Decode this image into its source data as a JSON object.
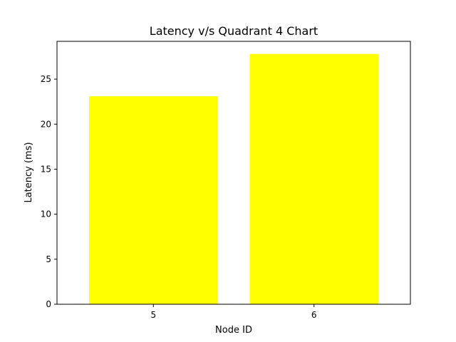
{
  "chart_data": {
    "type": "bar",
    "title": "Latency v/s Quadrant 4 Chart",
    "xlabel": "Node ID",
    "ylabel": "Latency (ms)",
    "categories": [
      "5",
      "6"
    ],
    "values": [
      23.1,
      27.8
    ],
    "bar_color": "#ffff00",
    "ylim": [
      0,
      29.2
    ],
    "yticks": [
      0,
      5,
      10,
      15,
      20,
      25
    ],
    "grid": false
  }
}
